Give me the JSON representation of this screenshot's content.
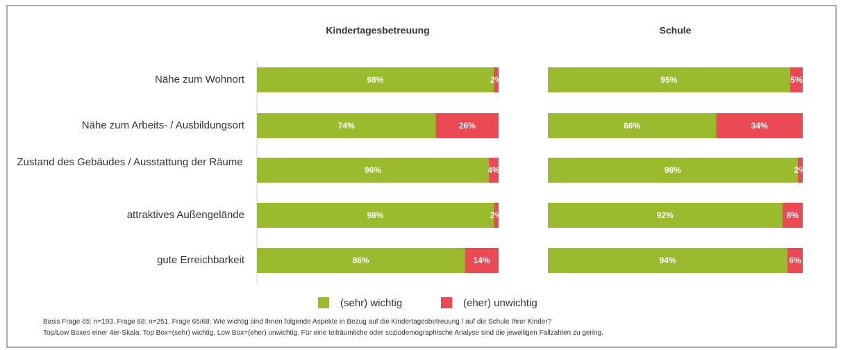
{
  "chart_data": [
    {
      "type": "bar",
      "title": "Kindertagesbetreuung",
      "categories": [
        "Nähe zum Wohnort",
        "Nähe zum Arbeits- / Ausbildungsort",
        "Zustand des Gebäudes / Ausstattung der Räume",
        "attraktives Außengelände",
        "gute Erreichbarkeit"
      ],
      "series": [
        {
          "name": "(sehr) wichtig",
          "color": "#9bbb2f",
          "values": [
            98,
            74,
            96,
            98,
            86
          ],
          "value_labels": [
            "98%",
            "74%",
            "96%",
            "98%",
            "86%"
          ]
        },
        {
          "name": "(eher) unwichtig",
          "color": "#eb4a55",
          "values": [
            2,
            26,
            4,
            2,
            14
          ],
          "value_labels": [
            "2%",
            "26%",
            "4%",
            "2%",
            "14%"
          ]
        }
      ]
    },
    {
      "type": "bar",
      "title": "Schule",
      "series": [
        {
          "color": "#9bbb2f",
          "values": [
            95,
            66,
            98,
            92,
            94
          ],
          "value_labels": [
            "95%",
            "66%",
            "98%",
            "92%",
            "94%"
          ]
        },
        {
          "color": "#eb4a55",
          "values": [
            5,
            34,
            2,
            8,
            6
          ],
          "value_labels": [
            "5%",
            "34%",
            "2%",
            "8%",
            "6%"
          ]
        }
      ]
    }
  ],
  "notes": [
    "Basis Frage 65: n=193, Frage 68: n=251. Frage 65/68: Wie wichtig sind Ihnen folgende Aspekte in Bezug auf die Kindertagesbetreuung / auf die Schule Ihrer Kinder?",
    "Top/Low Boxes einer 4er-Skala: Top Box=(sehr) wichtig, Low Box=(eher) unwichtig. Für eine teilräumliche oder soziodemographische Analyse sind die jeweiligen Fallzahlen zu gering."
  ]
}
